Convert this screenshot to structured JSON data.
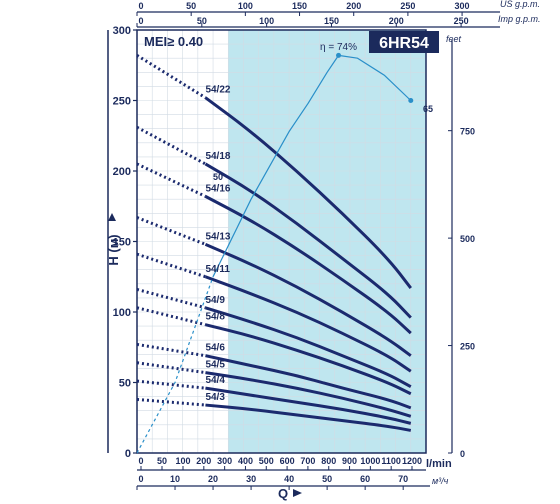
{
  "chart_data": {
    "type": "line",
    "model": "6HR54",
    "mei": "MEI≥ 0.40",
    "ylabel": "H (м)",
    "xlabel": "Q",
    "y_ticks": [
      "0",
      "50",
      "100",
      "150",
      "200",
      "250",
      "300"
    ],
    "y_range": [
      0,
      300
    ],
    "x_ticks_lmin": [
      "0",
      "50",
      "100",
      "200",
      "300",
      "400",
      "500",
      "600",
      "700",
      "800",
      "900",
      "1000",
      "1100",
      "1200"
    ],
    "x_unit_lmin": "l/min",
    "x_ticks_m3h": [
      "0",
      "10",
      "20",
      "30",
      "40",
      "50",
      "60",
      "70"
    ],
    "x_unit_m3h": "м³/ч",
    "x_range_m3h": [
      0,
      76
    ],
    "top_ticks_us": [
      "0",
      "50",
      "100",
      "150",
      "200",
      "250",
      "300"
    ],
    "top_unit_us": "US g.p.m.",
    "top_ticks_imp": [
      "0",
      "50",
      "100",
      "150",
      "200",
      "250"
    ],
    "top_unit_imp": "Imp g.p.m.",
    "right_ticks_feet": [
      "0",
      "250",
      "500",
      "750"
    ],
    "right_unit": "feet",
    "recommended_range_m3h": [
      24,
      76
    ],
    "efficiency": {
      "label": "η = 74%",
      "end_labels": [
        "50",
        "65"
      ],
      "points": [
        [
          0,
          0
        ],
        [
          10,
          50
        ],
        [
          20,
          125
        ],
        [
          30,
          180
        ],
        [
          40,
          228
        ],
        [
          45,
          248
        ],
        [
          50,
          270
        ],
        [
          53,
          282
        ],
        [
          58,
          280
        ],
        [
          65,
          268
        ],
        [
          72,
          250
        ]
      ]
    },
    "series": [
      {
        "name": "54/22",
        "x": [
          0,
          18,
          30,
          42,
          54,
          66,
          72
        ],
        "y": [
          282,
          252,
          228,
          200,
          170,
          138,
          117
        ]
      },
      {
        "name": "54/18",
        "x": [
          0,
          18,
          30,
          42,
          54,
          66,
          72
        ],
        "y": [
          231,
          205,
          186,
          163,
          138,
          113,
          96
        ]
      },
      {
        "name": "54/16",
        "x": [
          0,
          18,
          30,
          42,
          54,
          66,
          72
        ],
        "y": [
          205,
          182,
          165,
          145,
          123,
          100,
          85
        ]
      },
      {
        "name": "54/13",
        "x": [
          0,
          18,
          30,
          42,
          54,
          66,
          72
        ],
        "y": [
          167,
          148,
          134,
          118,
          100,
          81,
          69
        ]
      },
      {
        "name": "54/11",
        "x": [
          0,
          18,
          30,
          42,
          54,
          66,
          72
        ],
        "y": [
          141,
          125,
          113,
          100,
          85,
          69,
          58
        ]
      },
      {
        "name": "54/9",
        "x": [
          0,
          18,
          30,
          42,
          54,
          66,
          72
        ],
        "y": [
          116,
          103,
          93,
          82,
          69,
          56,
          47
        ]
      },
      {
        "name": "54/8",
        "x": [
          0,
          18,
          30,
          42,
          54,
          66,
          72
        ],
        "y": [
          103,
          91,
          83,
          73,
          62,
          50,
          42
        ]
      },
      {
        "name": "54/6",
        "x": [
          0,
          18,
          30,
          42,
          54,
          66,
          72
        ],
        "y": [
          77,
          69,
          62,
          55,
          46,
          38,
          32
        ]
      },
      {
        "name": "54/5",
        "x": [
          0,
          18,
          30,
          42,
          54,
          66,
          72
        ],
        "y": [
          64,
          57,
          52,
          46,
          39,
          31,
          26
        ]
      },
      {
        "name": "54/4",
        "x": [
          0,
          18,
          30,
          42,
          54,
          66,
          72
        ],
        "y": [
          51,
          46,
          41,
          36,
          31,
          25,
          21
        ]
      },
      {
        "name": "54/3",
        "x": [
          0,
          18,
          30,
          42,
          54,
          66,
          72
        ],
        "y": [
          38,
          34,
          31,
          27,
          23,
          19,
          16
        ]
      }
    ],
    "colors": {
      "curve": "#1b2a6e",
      "efficiency": "#2a8fc9",
      "range_fill": "#bfe6ef",
      "model_bg": "#1b2a5c",
      "axis": "#1b2a5c"
    }
  }
}
